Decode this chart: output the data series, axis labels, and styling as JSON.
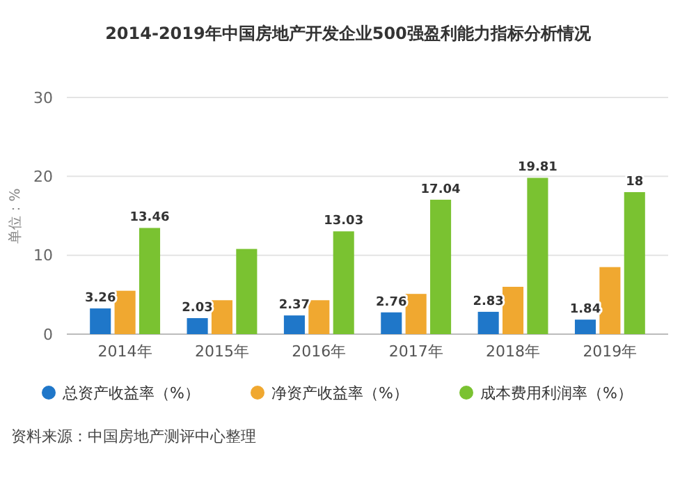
{
  "chart_data": {
    "type": "bar",
    "title": "2014-2019年中国房地产开发企业500强盈利能力指标分析情况",
    "ylabel": "单位：%",
    "categories": [
      "2014年",
      "2015年",
      "2016年",
      "2017年",
      "2018年",
      "2019年"
    ],
    "series": [
      {
        "name": "总资产收益率（%）",
        "color": "#1f77c9",
        "values": [
          3.26,
          2.03,
          2.37,
          2.76,
          2.83,
          1.84
        ],
        "value_labels": [
          "3.26",
          "2.03",
          "2.37",
          "2.76",
          "2.83",
          "1.84"
        ]
      },
      {
        "name": "净资产收益率（%）",
        "color": "#f0a830",
        "values": [
          5.5,
          4.3,
          4.3,
          5.1,
          6.0,
          8.5
        ]
      },
      {
        "name": "成本费用利润率（%）",
        "color": "#7ac231",
        "values": [
          13.46,
          10.8,
          13.03,
          17.04,
          19.81,
          18
        ],
        "value_labels": [
          "13.46",
          null,
          "13.03",
          "17.04",
          "19.81",
          "18"
        ]
      }
    ],
    "ylim": [
      0,
      30
    ],
    "yticks": [
      0,
      10,
      20,
      30
    ],
    "grid": "y",
    "legend": "bottom",
    "annotations": [
      "资料来源：中国房地产测评中心整理"
    ]
  }
}
